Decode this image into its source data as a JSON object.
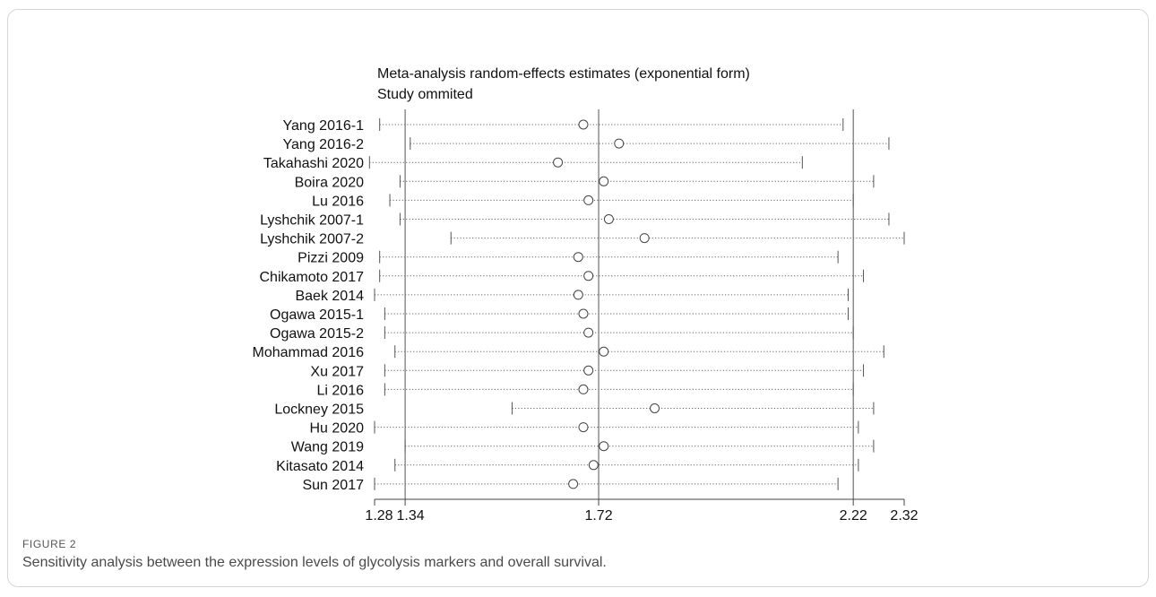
{
  "figure": {
    "label": "FIGURE 2",
    "caption": "Sensitivity analysis between the expression levels of glycolysis markers and overall survival."
  },
  "chart_data": {
    "type": "forest",
    "title": "Meta-analysis random-effects estimates (exponential form)",
    "subtitle": "Study ommited",
    "x_ticks": [
      {
        "value": 1.28,
        "label": "1.28"
      },
      {
        "value": 1.34,
        "label": "1.34"
      },
      {
        "value": 1.72,
        "label": "1.72"
      },
      {
        "value": 2.22,
        "label": "2.22"
      },
      {
        "value": 2.32,
        "label": "2.32"
      }
    ],
    "xlim": [
      1.28,
      2.32
    ],
    "reference_lines": {
      "lower": 1.34,
      "estimate": 1.72,
      "upper": 2.22
    },
    "studies": [
      {
        "name": "Yang 2016-1",
        "estimate": 1.69,
        "lower": 1.29,
        "upper": 2.2
      },
      {
        "name": "Yang 2016-2",
        "estimate": 1.76,
        "lower": 1.35,
        "upper": 2.29
      },
      {
        "name": "Takahashi 2020",
        "estimate": 1.64,
        "lower": 1.27,
        "upper": 2.12
      },
      {
        "name": "Boira 2020",
        "estimate": 1.73,
        "lower": 1.33,
        "upper": 2.26
      },
      {
        "name": "Lu 2016",
        "estimate": 1.7,
        "lower": 1.31,
        "upper": 2.22
      },
      {
        "name": "Lyshchik 2007-1",
        "estimate": 1.74,
        "lower": 1.33,
        "upper": 2.29
      },
      {
        "name": "Lyshchik 2007-2",
        "estimate": 1.81,
        "lower": 1.43,
        "upper": 2.32
      },
      {
        "name": "Pizzi 2009",
        "estimate": 1.68,
        "lower": 1.29,
        "upper": 2.19
      },
      {
        "name": "Chikamoto 2017",
        "estimate": 1.7,
        "lower": 1.29,
        "upper": 2.24
      },
      {
        "name": "Baek 2014",
        "estimate": 1.68,
        "lower": 1.28,
        "upper": 2.21
      },
      {
        "name": "Ogawa 2015-1",
        "estimate": 1.69,
        "lower": 1.3,
        "upper": 2.21
      },
      {
        "name": "Ogawa 2015-2",
        "estimate": 1.7,
        "lower": 1.3,
        "upper": 2.22
      },
      {
        "name": "Mohammad 2016",
        "estimate": 1.73,
        "lower": 1.32,
        "upper": 2.28
      },
      {
        "name": "Xu 2017",
        "estimate": 1.7,
        "lower": 1.3,
        "upper": 2.24
      },
      {
        "name": "Li 2016",
        "estimate": 1.69,
        "lower": 1.3,
        "upper": 2.22
      },
      {
        "name": "Lockney 2015",
        "estimate": 1.83,
        "lower": 1.55,
        "upper": 2.26
      },
      {
        "name": "Hu 2020",
        "estimate": 1.69,
        "lower": 1.28,
        "upper": 2.23
      },
      {
        "name": "Wang 2019",
        "estimate": 1.73,
        "lower": 1.34,
        "upper": 2.26
      },
      {
        "name": "Kitasato 2014",
        "estimate": 1.71,
        "lower": 1.32,
        "upper": 2.23
      },
      {
        "name": "Sun 2017",
        "estimate": 1.67,
        "lower": 1.28,
        "upper": 2.19
      }
    ]
  }
}
